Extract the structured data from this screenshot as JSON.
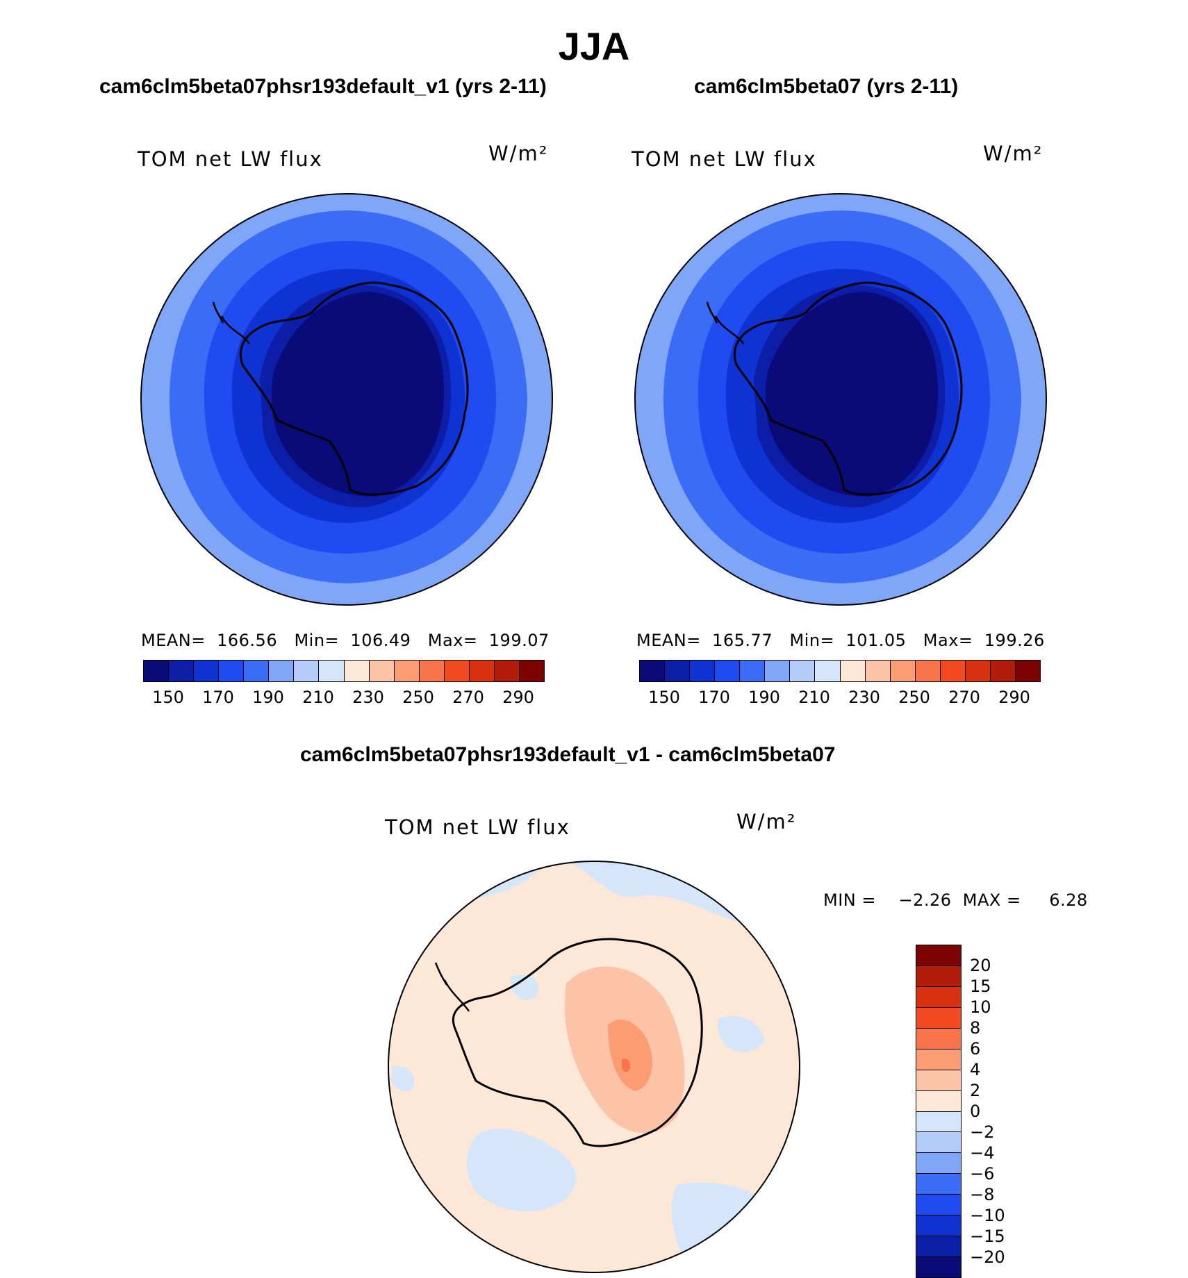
{
  "figure": {
    "title": "JJA",
    "colors": {
      "abs_palette": [
        "#0a0a78",
        "#0c1ea8",
        "#0f32d2",
        "#1f4bf0",
        "#3b6cf5",
        "#7fa6f7",
        "#b3ccf9",
        "#d5e6fb",
        "#fde7d7",
        "#fcc3a6",
        "#fb9c72",
        "#f9744a",
        "#f44a22",
        "#d9300f",
        "#b21c0a",
        "#7d0303"
      ],
      "diff_palette": [
        "#0a0a78",
        "#0c1ea8",
        "#0f32d2",
        "#1f4bf0",
        "#3b6cf5",
        "#7fa6f7",
        "#b3ccf9",
        "#d5e6fb",
        "#fde7d7",
        "#fcc3a6",
        "#fb9c72",
        "#f9744a",
        "#f44a22",
        "#d9300f",
        "#b21c0a",
        "#7d0303"
      ]
    }
  },
  "panel_left": {
    "subtitle": "cam6clm5beta07phsr193default_v1 (yrs 2-11)",
    "variable": "TOM net LW flux",
    "units": "W/m²",
    "stats": "MEAN=  166.56   Min=  106.49   Max=  199.07",
    "colorbar_ticks": [
      "150",
      "170",
      "190",
      "210",
      "230",
      "250",
      "270",
      "290"
    ]
  },
  "panel_right": {
    "subtitle": "cam6clm5beta07 (yrs 2-11)",
    "variable": "TOM net LW flux",
    "units": "W/m²",
    "stats": "MEAN=  165.77   Min=  101.05   Max=  199.26",
    "colorbar_ticks": [
      "150",
      "170",
      "190",
      "210",
      "230",
      "250",
      "270",
      "290"
    ]
  },
  "panel_diff": {
    "subtitle": "cam6clm5beta07phsr193default_v1 - cam6clm5beta07",
    "variable": "TOM net LW flux",
    "units": "W/m²",
    "stats": "MIN =    −2.26  MAX =     6.28",
    "colorbar_ticks": [
      "20",
      "15",
      "10",
      "8",
      "6",
      "4",
      "2",
      "0",
      "−2",
      "−4",
      "−6",
      "−8",
      "−10",
      "−15",
      "−20"
    ]
  }
}
